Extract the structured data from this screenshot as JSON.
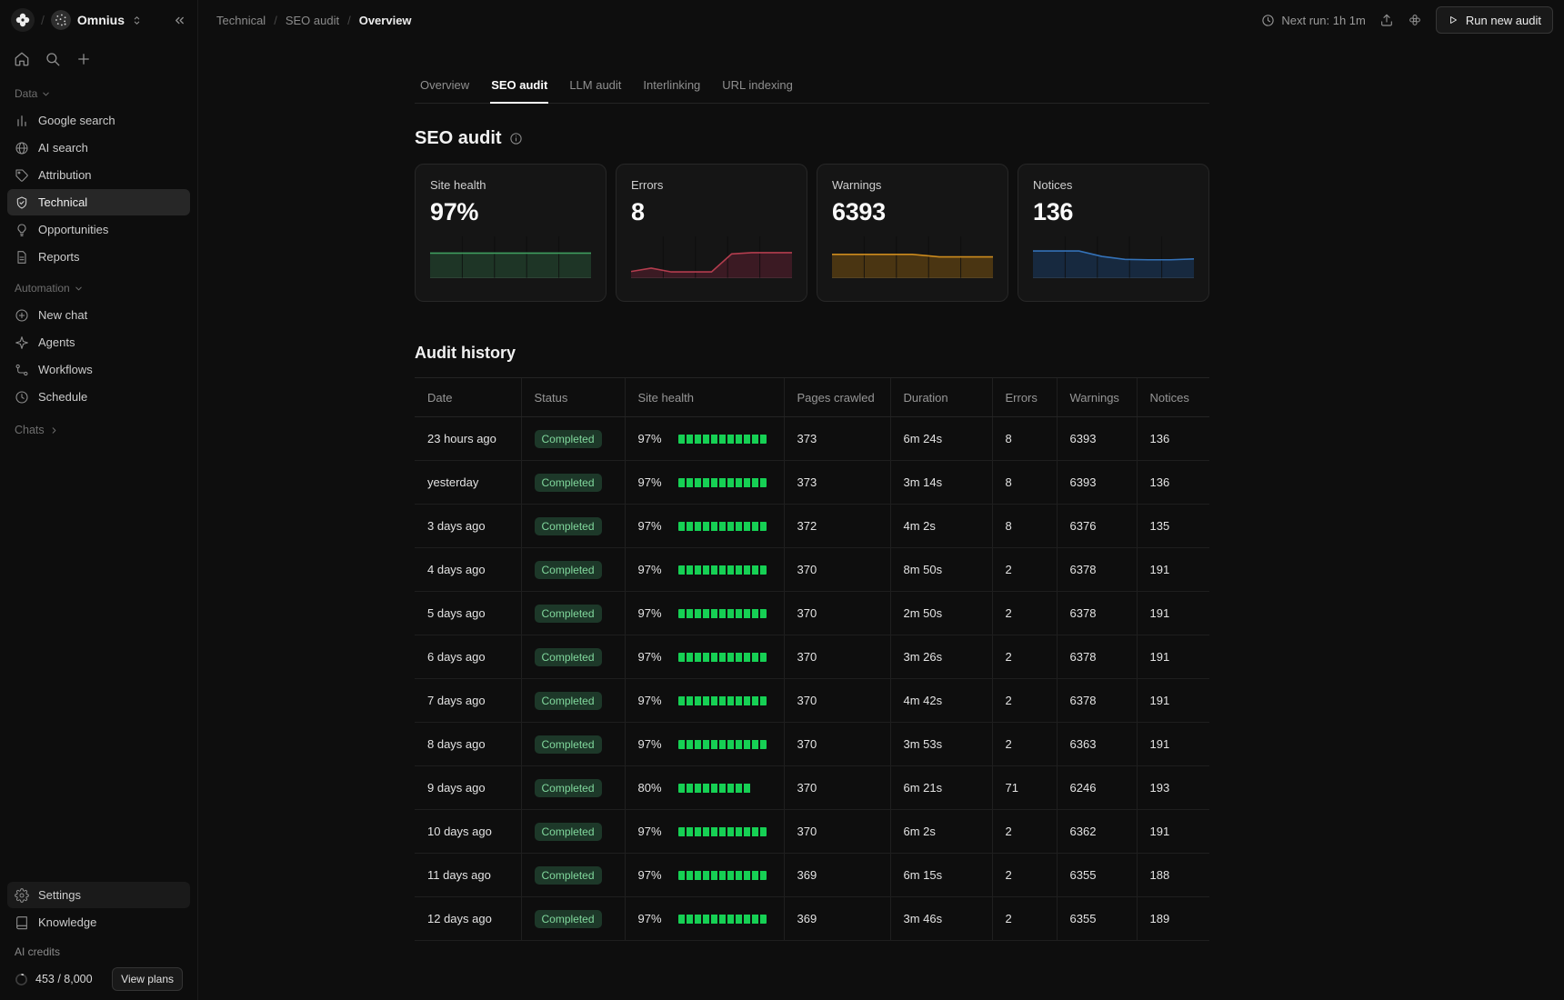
{
  "app": {
    "workspace_name": "Omnius",
    "separator": "/"
  },
  "sidebar": {
    "data_section_label": "Data",
    "automation_section_label": "Automation",
    "chats_label": "Chats",
    "items": {
      "google_search": "Google search",
      "ai_search": "AI search",
      "attribution": "Attribution",
      "technical": "Technical",
      "opportunities": "Opportunities",
      "reports": "Reports",
      "new_chat": "New chat",
      "agents": "Agents",
      "workflows": "Workflows",
      "schedule": "Schedule",
      "settings": "Settings",
      "knowledge": "Knowledge"
    },
    "credits": {
      "label": "AI credits",
      "usage": "453 / 8,000",
      "view_plans": "View plans"
    }
  },
  "topbar": {
    "breadcrumb": [
      "Technical",
      "SEO audit",
      "Overview"
    ],
    "next_run": "Next run: 1h 1m",
    "run_button": "Run new audit"
  },
  "tabs": [
    "Overview",
    "SEO audit",
    "LLM audit",
    "Interlinking",
    "URL indexing"
  ],
  "active_tab": "SEO audit",
  "page": {
    "title": "SEO audit",
    "history_title": "Audit history"
  },
  "cards": [
    {
      "label": "Site health",
      "value": "97%",
      "stroke": "#3f9d5f",
      "fill": "#1e3526",
      "spark": [
        60,
        60,
        60,
        60,
        60,
        60
      ]
    },
    {
      "label": "Errors",
      "value": "8",
      "stroke": "#b33d4e",
      "fill": "#3b1a23",
      "spark": [
        16,
        24,
        15,
        15,
        15,
        58,
        61,
        61,
        61
      ]
    },
    {
      "label": "Warnings",
      "value": "6393",
      "stroke": "#cc8b1e",
      "fill": "#4a3512",
      "spark": [
        57,
        57,
        57,
        57,
        51,
        51,
        51
      ]
    },
    {
      "label": "Notices",
      "value": "136",
      "stroke": "#3472b8",
      "fill": "#17293f",
      "spark": [
        65,
        65,
        65,
        52,
        45,
        44,
        44,
        46
      ]
    }
  ],
  "audit_table": {
    "columns": [
      "Date",
      "Status",
      "Site health",
      "Pages crawled",
      "Duration",
      "Errors",
      "Warnings",
      "Notices"
    ],
    "rows": [
      {
        "date": "23 hours ago",
        "status": "Completed",
        "health": 97,
        "pages": "373",
        "duration": "6m 24s",
        "errors": "8",
        "warnings": "6393",
        "notices": "136"
      },
      {
        "date": "yesterday",
        "status": "Completed",
        "health": 97,
        "pages": "373",
        "duration": "3m 14s",
        "errors": "8",
        "warnings": "6393",
        "notices": "136"
      },
      {
        "date": "3 days ago",
        "status": "Completed",
        "health": 97,
        "pages": "372",
        "duration": "4m 2s",
        "errors": "8",
        "warnings": "6376",
        "notices": "135"
      },
      {
        "date": "4 days ago",
        "status": "Completed",
        "health": 97,
        "pages": "370",
        "duration": "8m 50s",
        "errors": "2",
        "warnings": "6378",
        "notices": "191"
      },
      {
        "date": "5 days ago",
        "status": "Completed",
        "health": 97,
        "pages": "370",
        "duration": "2m 50s",
        "errors": "2",
        "warnings": "6378",
        "notices": "191"
      },
      {
        "date": "6 days ago",
        "status": "Completed",
        "health": 97,
        "pages": "370",
        "duration": "3m 26s",
        "errors": "2",
        "warnings": "6378",
        "notices": "191"
      },
      {
        "date": "7 days ago",
        "status": "Completed",
        "health": 97,
        "pages": "370",
        "duration": "4m 42s",
        "errors": "2",
        "warnings": "6378",
        "notices": "191"
      },
      {
        "date": "8 days ago",
        "status": "Completed",
        "health": 97,
        "pages": "370",
        "duration": "3m 53s",
        "errors": "2",
        "warnings": "6363",
        "notices": "191"
      },
      {
        "date": "9 days ago",
        "status": "Completed",
        "health": 80,
        "pages": "370",
        "duration": "6m 21s",
        "errors": "71",
        "warnings": "6246",
        "notices": "193"
      },
      {
        "date": "10 days ago",
        "status": "Completed",
        "health": 97,
        "pages": "370",
        "duration": "6m 2s",
        "errors": "2",
        "warnings": "6362",
        "notices": "191"
      },
      {
        "date": "11 days ago",
        "status": "Completed",
        "health": 97,
        "pages": "369",
        "duration": "6m 15s",
        "errors": "2",
        "warnings": "6355",
        "notices": "188"
      },
      {
        "date": "12 days ago",
        "status": "Completed",
        "health": 97,
        "pages": "369",
        "duration": "3m 46s",
        "errors": "2",
        "warnings": "6355",
        "notices": "189"
      }
    ]
  }
}
